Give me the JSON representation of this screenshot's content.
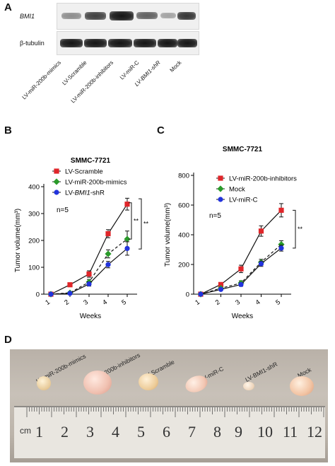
{
  "panels": {
    "a": "A",
    "b": "B",
    "c": "C",
    "d": "D"
  },
  "blot": {
    "row_labels": [
      "BMI1",
      "β-tubulin"
    ],
    "lanes": [
      "LV-miR-200b-mimics",
      "LV-Scramble",
      "LV-miR-200b-inhibitors",
      "LV-miR-C",
      "LV-BMI1-shR",
      "Mock"
    ],
    "bmi1_relative_intensity": [
      0.35,
      0.75,
      1.0,
      0.55,
      0.25,
      0.8
    ]
  },
  "chart_data": [
    {
      "type": "line",
      "title": "SMMC-7721",
      "xlabel": "Weeks",
      "ylabel": "Tumor volume(mm³)",
      "x": [
        1,
        2,
        3,
        4,
        5
      ],
      "ylim": [
        0,
        400
      ],
      "yticks": [
        0,
        100,
        200,
        300,
        400
      ],
      "annotation": "n=5",
      "significance": [
        "**",
        "**"
      ],
      "legend_position": "top-left",
      "series": [
        {
          "name": "LV-Scramble",
          "values": [
            0,
            35,
            75,
            225,
            335
          ],
          "errors": [
            0,
            6,
            12,
            15,
            22
          ],
          "color": "#e0262a",
          "marker": "square",
          "dash": false
        },
        {
          "name": "LV-miR-200b-mimics",
          "values": [
            0,
            5,
            45,
            150,
            205
          ],
          "errors": [
            0,
            4,
            10,
            15,
            30
          ],
          "color": "#2a9a2a",
          "marker": "diamond",
          "dash": true
        },
        {
          "name": "LV-BMI1-shR",
          "values": [
            0,
            3,
            38,
            110,
            170
          ],
          "errors": [
            0,
            3,
            8,
            12,
            25
          ],
          "color": "#2233dd",
          "marker": "circle",
          "dash": false
        }
      ]
    },
    {
      "type": "line",
      "title": "SMMC-7721",
      "xlabel": "Weeks",
      "ylabel": "Tumor volume(mm³)",
      "x": [
        1,
        2,
        3,
        4,
        5
      ],
      "ylim": [
        0,
        800
      ],
      "yticks": [
        0,
        200,
        400,
        600,
        800
      ],
      "annotation": "n=5",
      "significance": [
        "**"
      ],
      "legend_position": "top-left",
      "series": [
        {
          "name": "LV-miR-200b-inhibitors",
          "values": [
            0,
            65,
            170,
            425,
            565
          ],
          "errors": [
            0,
            12,
            25,
            35,
            45
          ],
          "color": "#e0262a",
          "marker": "square",
          "dash": false
        },
        {
          "name": "Mock",
          "values": [
            0,
            40,
            75,
            215,
            335
          ],
          "errors": [
            0,
            8,
            15,
            20,
            25
          ],
          "color": "#2a9a2a",
          "marker": "diamond",
          "dash": true
        },
        {
          "name": "LV-miR-C",
          "values": [
            0,
            32,
            65,
            205,
            310
          ],
          "errors": [
            0,
            6,
            12,
            18,
            20
          ],
          "color": "#2233dd",
          "marker": "circle",
          "dash": false
        }
      ]
    }
  ],
  "photo": {
    "labels": [
      "LV-miR-200b-mimics",
      "LV-miR-200b-inhibitors",
      "LV-Scramble",
      "LV-miR-C",
      "LV-BMI1-shR",
      "Mock"
    ],
    "ruler_unit": "cm",
    "ruler_numbers": [
      "1",
      "2",
      "3",
      "4",
      "5",
      "6",
      "7",
      "8",
      "9",
      "10",
      "11",
      "12"
    ]
  }
}
